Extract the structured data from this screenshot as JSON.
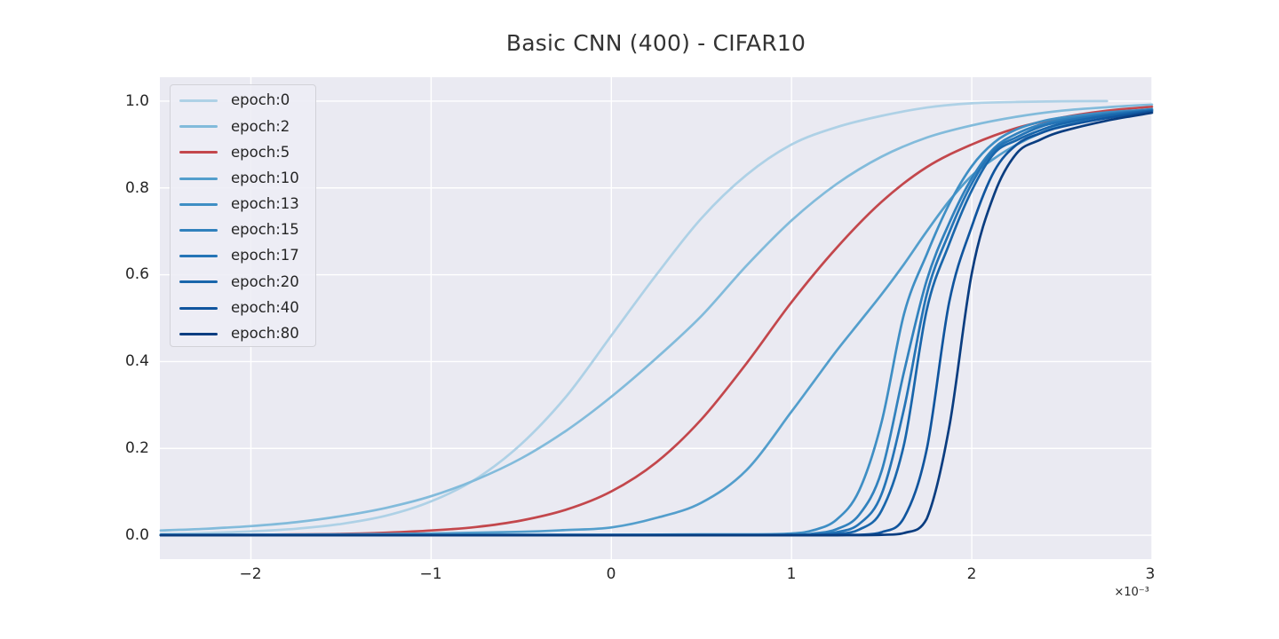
{
  "title": "Basic CNN (400) - CIFAR10",
  "chart_data": {
    "type": "line",
    "title": "Basic CNN (400) - CIFAR10",
    "xlabel": "",
    "ylabel": "",
    "x_units_note": "x values are in units of 1e-3; axis shows offset multiplier",
    "x_offset_label": "×10⁻³",
    "xlim": [
      -2.505,
      3.0
    ],
    "ylim": [
      -0.055,
      1.055
    ],
    "x_ticks": [
      -2,
      -1,
      0,
      1,
      2,
      3
    ],
    "x_tick_labels": [
      "−2",
      "−1",
      "0",
      "1",
      "2",
      "3"
    ],
    "y_ticks": [
      0,
      0.2,
      0.4,
      0.6,
      0.8,
      1.0
    ],
    "y_tick_labels": [
      "0.0",
      "0.2",
      "0.4",
      "0.6",
      "0.8",
      "1.0"
    ],
    "grid": true,
    "legend_position": "upper left",
    "background_color": "#eaeaf2",
    "gridline_color": "#ffffff",
    "series": [
      {
        "name": "epoch:0",
        "color": "#aed1e6",
        "points": [
          [
            -2.5,
            0.003
          ],
          [
            -2.25,
            0.005
          ],
          [
            -2,
            0.009
          ],
          [
            -1.75,
            0.015
          ],
          [
            -1.5,
            0.026
          ],
          [
            -1.25,
            0.045
          ],
          [
            -1,
            0.078
          ],
          [
            -0.75,
            0.13
          ],
          [
            -0.5,
            0.21
          ],
          [
            -0.25,
            0.32
          ],
          [
            0,
            0.46
          ],
          [
            0.25,
            0.6
          ],
          [
            0.5,
            0.73
          ],
          [
            0.75,
            0.83
          ],
          [
            1,
            0.9
          ],
          [
            1.25,
            0.94
          ],
          [
            1.5,
            0.966
          ],
          [
            1.75,
            0.985
          ],
          [
            2,
            0.995
          ],
          [
            2.25,
            0.998
          ],
          [
            2.5,
            0.9995
          ],
          [
            2.75,
            1
          ]
        ]
      },
      {
        "name": "epoch:2",
        "color": "#82bbdb",
        "points": [
          [
            -2.5,
            0.011
          ],
          [
            -2.25,
            0.015
          ],
          [
            -2,
            0.021
          ],
          [
            -1.75,
            0.03
          ],
          [
            -1.5,
            0.044
          ],
          [
            -1.25,
            0.063
          ],
          [
            -1,
            0.09
          ],
          [
            -0.75,
            0.128
          ],
          [
            -0.5,
            0.177
          ],
          [
            -0.25,
            0.241
          ],
          [
            0,
            0.319
          ],
          [
            0.25,
            0.408
          ],
          [
            0.5,
            0.505
          ],
          [
            0.75,
            0.621
          ],
          [
            1,
            0.725
          ],
          [
            1.25,
            0.809
          ],
          [
            1.5,
            0.872
          ],
          [
            1.75,
            0.916
          ],
          [
            2,
            0.944
          ],
          [
            2.25,
            0.964
          ],
          [
            2.5,
            0.978
          ],
          [
            2.75,
            0.986
          ],
          [
            3,
            0.992
          ]
        ]
      },
      {
        "name": "epoch:5",
        "color": "#c3474c",
        "points": [
          [
            -2.5,
            0
          ],
          [
            -2.25,
            0.001
          ],
          [
            -2,
            0.001
          ],
          [
            -1.75,
            0.002
          ],
          [
            -1.5,
            0.003
          ],
          [
            -1.25,
            0.006
          ],
          [
            -1,
            0.011
          ],
          [
            -0.75,
            0.019
          ],
          [
            -0.5,
            0.034
          ],
          [
            -0.25,
            0.059
          ],
          [
            0,
            0.101
          ],
          [
            0.25,
            0.168
          ],
          [
            0.5,
            0.267
          ],
          [
            0.75,
            0.396
          ],
          [
            1,
            0.537
          ],
          [
            1.25,
            0.662
          ],
          [
            1.5,
            0.768
          ],
          [
            1.75,
            0.848
          ],
          [
            2,
            0.9
          ],
          [
            2.25,
            0.938
          ],
          [
            2.5,
            0.962
          ],
          [
            2.75,
            0.978
          ],
          [
            3,
            0.987
          ]
        ]
      },
      {
        "name": "epoch:10",
        "color": "#539ecc",
        "points": [
          [
            -2.5,
            0.001
          ],
          [
            -2,
            0.001
          ],
          [
            -1.5,
            0.002
          ],
          [
            -1,
            0.004
          ],
          [
            -0.5,
            0.008
          ],
          [
            -0.25,
            0.012
          ],
          [
            0,
            0.018
          ],
          [
            0.25,
            0.04
          ],
          [
            0.5,
            0.075
          ],
          [
            0.75,
            0.15
          ],
          [
            1,
            0.285
          ],
          [
            1.125,
            0.355
          ],
          [
            1.25,
            0.425
          ],
          [
            1.375,
            0.49
          ],
          [
            1.5,
            0.555
          ],
          [
            1.625,
            0.625
          ],
          [
            1.75,
            0.7
          ],
          [
            1.875,
            0.77
          ],
          [
            2,
            0.828
          ],
          [
            2.125,
            0.868
          ],
          [
            2.25,
            0.9
          ],
          [
            2.375,
            0.925
          ],
          [
            2.5,
            0.944
          ],
          [
            2.75,
            0.968
          ],
          [
            3,
            0.982
          ]
        ]
      },
      {
        "name": "epoch:13",
        "color": "#3e8ec4",
        "points": [
          [
            -2.5,
            0.001
          ],
          [
            -2,
            0.001
          ],
          [
            -1.5,
            0.001
          ],
          [
            -1,
            0.001
          ],
          [
            -0.5,
            0.001
          ],
          [
            0,
            0.001
          ],
          [
            0.5,
            0.002
          ],
          [
            0.75,
            0.002
          ],
          [
            1,
            0.004
          ],
          [
            1.125,
            0.012
          ],
          [
            1.25,
            0.036
          ],
          [
            1.375,
            0.103
          ],
          [
            1.5,
            0.261
          ],
          [
            1.625,
            0.511
          ],
          [
            1.75,
            0.647
          ],
          [
            1.875,
            0.763
          ],
          [
            2,
            0.85
          ],
          [
            2.125,
            0.905
          ],
          [
            2.25,
            0.935
          ],
          [
            2.375,
            0.952
          ],
          [
            2.5,
            0.962
          ],
          [
            2.75,
            0.974
          ],
          [
            3,
            0.981
          ]
        ]
      },
      {
        "name": "epoch:15",
        "color": "#3181bd",
        "points": [
          [
            -2.5,
            0.001
          ],
          [
            -2,
            0.001
          ],
          [
            -1.5,
            0.001
          ],
          [
            -1,
            0.001
          ],
          [
            -0.5,
            0.001
          ],
          [
            0,
            0.001
          ],
          [
            0.5,
            0.001
          ],
          [
            1,
            0.001
          ],
          [
            1.125,
            0.004
          ],
          [
            1.25,
            0.014
          ],
          [
            1.375,
            0.047
          ],
          [
            1.5,
            0.148
          ],
          [
            1.625,
            0.378
          ],
          [
            1.75,
            0.587
          ],
          [
            1.875,
            0.719
          ],
          [
            2,
            0.822
          ],
          [
            2.125,
            0.892
          ],
          [
            2.25,
            0.925
          ],
          [
            2.375,
            0.945
          ],
          [
            2.5,
            0.957
          ],
          [
            2.75,
            0.971
          ],
          [
            3,
            0.98
          ]
        ]
      },
      {
        "name": "epoch:17",
        "color": "#2474b6",
        "points": [
          [
            -2.5,
            0
          ],
          [
            -2,
            0
          ],
          [
            -1.5,
            0
          ],
          [
            -1,
            0
          ],
          [
            -0.5,
            0
          ],
          [
            0,
            0
          ],
          [
            0.5,
            0
          ],
          [
            1,
            0.001
          ],
          [
            1.125,
            0.002
          ],
          [
            1.25,
            0.007
          ],
          [
            1.375,
            0.026
          ],
          [
            1.5,
            0.095
          ],
          [
            1.625,
            0.293
          ],
          [
            1.75,
            0.555
          ],
          [
            1.875,
            0.697
          ],
          [
            2,
            0.81
          ],
          [
            2.125,
            0.887
          ],
          [
            2.25,
            0.917
          ],
          [
            2.375,
            0.94
          ],
          [
            2.5,
            0.953
          ],
          [
            2.75,
            0.969
          ],
          [
            3,
            0.979
          ]
        ]
      },
      {
        "name": "epoch:20",
        "color": "#1966ab",
        "points": [
          [
            -2.5,
            0
          ],
          [
            -2,
            0
          ],
          [
            -1.5,
            0
          ],
          [
            -1,
            0
          ],
          [
            -0.5,
            0
          ],
          [
            0,
            0
          ],
          [
            0.5,
            0
          ],
          [
            1,
            0
          ],
          [
            1.125,
            0.001
          ],
          [
            1.25,
            0.003
          ],
          [
            1.375,
            0.013
          ],
          [
            1.5,
            0.057
          ],
          [
            1.625,
            0.211
          ],
          [
            1.75,
            0.519
          ],
          [
            1.875,
            0.671
          ],
          [
            2,
            0.794
          ],
          [
            2.125,
            0.88
          ],
          [
            2.25,
            0.91
          ],
          [
            2.375,
            0.932
          ],
          [
            2.5,
            0.948
          ],
          [
            2.75,
            0.966
          ],
          [
            3,
            0.978
          ]
        ]
      },
      {
        "name": "epoch:40",
        "color": "#10559e",
        "points": [
          [
            -2.5,
            0
          ],
          [
            -2,
            0
          ],
          [
            -1.5,
            0
          ],
          [
            -1,
            0
          ],
          [
            -0.5,
            0
          ],
          [
            0,
            0
          ],
          [
            0.5,
            0
          ],
          [
            1,
            0
          ],
          [
            1.25,
            0.001
          ],
          [
            1.375,
            0.001
          ],
          [
            1.5,
            0.007
          ],
          [
            1.625,
            0.041
          ],
          [
            1.75,
            0.198
          ],
          [
            1.875,
            0.537
          ],
          [
            2,
            0.711
          ],
          [
            2.125,
            0.839
          ],
          [
            2.25,
            0.9
          ],
          [
            2.375,
            0.925
          ],
          [
            2.5,
            0.941
          ],
          [
            2.75,
            0.961
          ],
          [
            3,
            0.976
          ]
        ]
      },
      {
        "name": "epoch:80",
        "color": "#0a3d80",
        "points": [
          [
            -2.5,
            0
          ],
          [
            -2,
            0
          ],
          [
            -1.5,
            0
          ],
          [
            -1,
            0
          ],
          [
            -0.5,
            0
          ],
          [
            0,
            0
          ],
          [
            0.5,
            0
          ],
          [
            1,
            0
          ],
          [
            1.25,
            0
          ],
          [
            1.5,
            0.001
          ],
          [
            1.625,
            0.005
          ],
          [
            1.75,
            0.038
          ],
          [
            1.875,
            0.249
          ],
          [
            2,
            0.603
          ],
          [
            2.125,
            0.786
          ],
          [
            2.25,
            0.88
          ],
          [
            2.375,
            0.91
          ],
          [
            2.5,
            0.93
          ],
          [
            2.75,
            0.955
          ],
          [
            3,
            0.973
          ]
        ]
      }
    ]
  }
}
